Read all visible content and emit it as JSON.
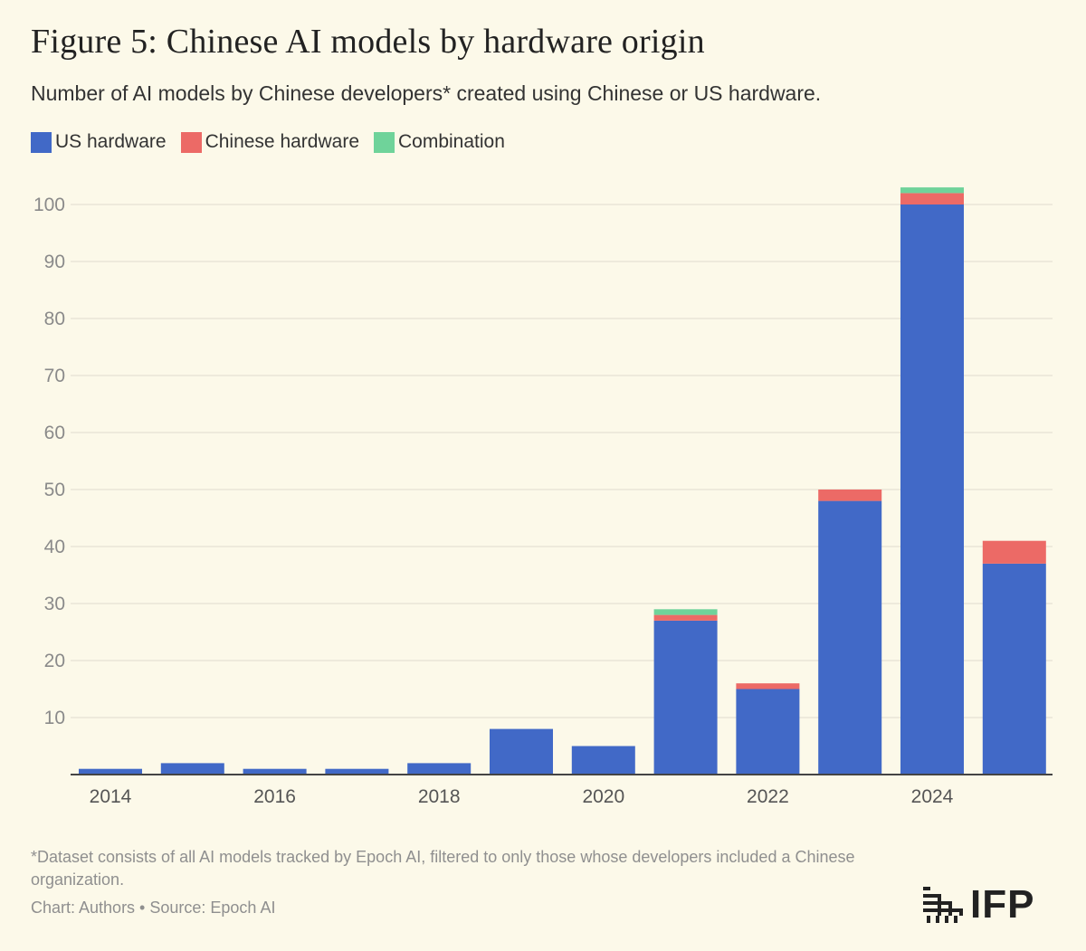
{
  "title": "Figure 5: Chinese AI models by hardware origin",
  "subtitle": "Number of AI models by Chinese developers* created using Chinese or US hardware.",
  "legend": [
    {
      "label": "US hardware",
      "color": "#4169c7"
    },
    {
      "label": "Chinese hardware",
      "color": "#ec6a66"
    },
    {
      "label": "Combination",
      "color": "#6fd39a"
    }
  ],
  "chart_data": {
    "type": "bar",
    "stacked": true,
    "x": [
      2014,
      2015,
      2016,
      2017,
      2018,
      2019,
      2020,
      2021,
      2022,
      2023,
      2024,
      2025
    ],
    "x_tick_labels": [
      "2014",
      "2016",
      "2018",
      "2020",
      "2022",
      "2024"
    ],
    "series": [
      {
        "name": "US hardware",
        "color": "#4169c7",
        "values": [
          1,
          2,
          1,
          1,
          2,
          8,
          5,
          27,
          15,
          48,
          100,
          37
        ]
      },
      {
        "name": "Chinese hardware",
        "color": "#ec6a66",
        "values": [
          0,
          0,
          0,
          0,
          0,
          0,
          0,
          1,
          1,
          2,
          2,
          4
        ]
      },
      {
        "name": "Combination",
        "color": "#6fd39a",
        "values": [
          0,
          0,
          0,
          0,
          0,
          0,
          0,
          1,
          0,
          0,
          1,
          0
        ]
      }
    ],
    "y_ticks": [
      10,
      20,
      30,
      40,
      50,
      60,
      70,
      80,
      90,
      100
    ],
    "ylim": [
      0,
      103
    ],
    "grid": true
  },
  "footnote": "*Dataset consists of all AI models tracked by Epoch AI, filtered to only those whose developers included a Chinese organization.",
  "credit": "Chart: Authors • Source: Epoch AI",
  "logo": {
    "text": "IFP",
    "icon": "ifp-logo-icon"
  }
}
